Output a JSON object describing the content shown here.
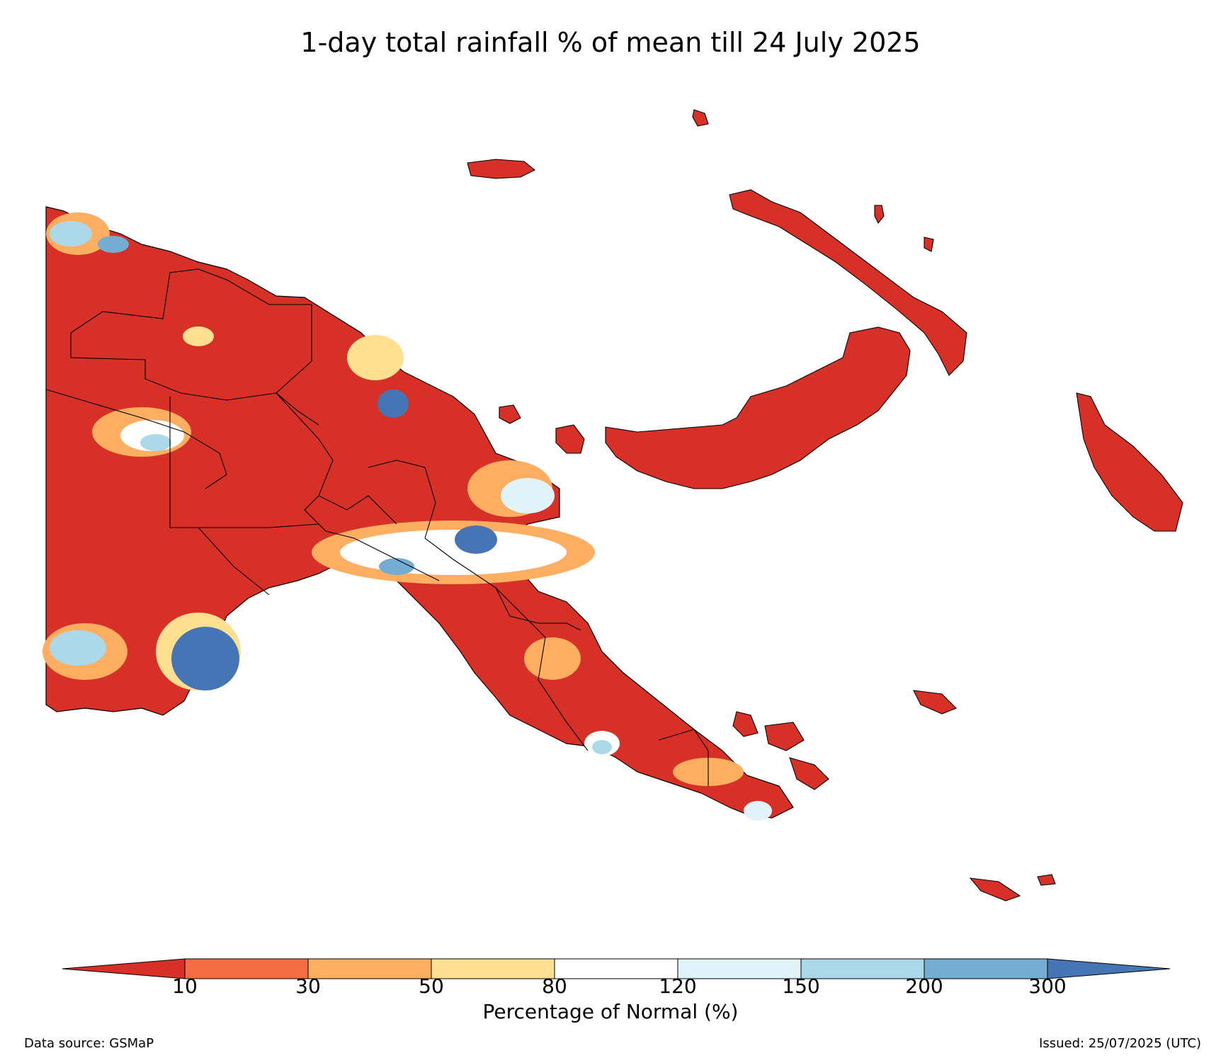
{
  "title": "1-day total rainfall % of mean till 24 July 2025",
  "colorbar": {
    "label": "Percentage of Normal (%)",
    "ticks": [
      "10",
      "30",
      "50",
      "80",
      "120",
      "150",
      "200",
      "300"
    ],
    "colors": {
      "below_10": "#d73027",
      "10_30": "#f46d43",
      "30_50": "#fdae61",
      "50_80": "#fee090",
      "80_120": "#ffffff",
      "120_150": "#e0f3f8",
      "150_200": "#abd9e9",
      "200_300": "#74add1",
      "above_300": "#4575b4"
    }
  },
  "footer": {
    "source": "Data source: GSMaP",
    "issued": "Issued: 25/07/2025 (UTC)"
  }
}
